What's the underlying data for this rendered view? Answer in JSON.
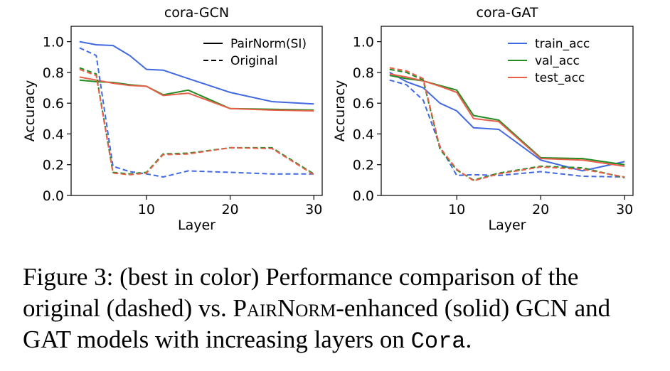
{
  "colors": {
    "train_acc": "#4169e1",
    "val_acc": "#228b22",
    "test_acc": "#e9604a"
  },
  "chart_data": [
    {
      "type": "line",
      "title": "cora-GCN",
      "xlabel": "Layer",
      "ylabel": "Accuracy",
      "xlim": [
        1,
        31
      ],
      "ylim": [
        0,
        1.1
      ],
      "xticks": [
        10,
        20,
        30
      ],
      "yticks": [
        0.0,
        0.2,
        0.4,
        0.6,
        0.8,
        1.0
      ],
      "ytick_labels": [
        "0.0",
        "0.2",
        "0.4",
        "0.6",
        "0.8",
        "1.0"
      ],
      "grid": false,
      "legend_position": "top-right",
      "legend": [
        {
          "label": "PairNorm(SI)",
          "style": "solid"
        },
        {
          "label": "Original",
          "style": "dashed"
        }
      ],
      "x": [
        2,
        4,
        6,
        8,
        10,
        12,
        15,
        20,
        25,
        30
      ],
      "series": [
        {
          "metric": "train_acc",
          "style": "solid",
          "values": [
            1.0,
            0.98,
            0.975,
            0.91,
            0.82,
            0.815,
            0.76,
            0.67,
            0.61,
            0.595
          ]
        },
        {
          "metric": "val_acc",
          "style": "solid",
          "values": [
            0.75,
            0.74,
            0.735,
            0.72,
            0.71,
            0.655,
            0.685,
            0.565,
            0.56,
            0.555
          ]
        },
        {
          "metric": "test_acc",
          "style": "solid",
          "values": [
            0.77,
            0.75,
            0.73,
            0.715,
            0.71,
            0.65,
            0.665,
            0.565,
            0.555,
            0.55
          ]
        },
        {
          "metric": "train_acc",
          "style": "dashed",
          "values": [
            0.96,
            0.91,
            0.19,
            0.155,
            0.14,
            0.12,
            0.16,
            0.15,
            0.14,
            0.14
          ]
        },
        {
          "metric": "val_acc",
          "style": "dashed",
          "values": [
            0.83,
            0.79,
            0.15,
            0.14,
            0.15,
            0.27,
            0.275,
            0.31,
            0.31,
            0.14
          ]
        },
        {
          "metric": "test_acc",
          "style": "dashed",
          "values": [
            0.82,
            0.78,
            0.145,
            0.135,
            0.145,
            0.265,
            0.27,
            0.31,
            0.305,
            0.135
          ]
        }
      ]
    },
    {
      "type": "line",
      "title": "cora-GAT",
      "xlabel": "Layer",
      "ylabel": "Accuracy",
      "xlim": [
        1,
        31
      ],
      "ylim": [
        0,
        1.1
      ],
      "xticks": [
        10,
        20,
        30
      ],
      "yticks": [
        0.0,
        0.2,
        0.4,
        0.6,
        0.8,
        1.0
      ],
      "ytick_labels": [
        "0.0",
        "0.2",
        "0.4",
        "0.6",
        "0.8",
        "1.0"
      ],
      "grid": false,
      "legend_position": "top-right",
      "legend": [
        {
          "label": "train_acc",
          "metric": "train_acc"
        },
        {
          "label": "val_acc",
          "metric": "val_acc"
        },
        {
          "label": "test_acc",
          "metric": "test_acc"
        }
      ],
      "x": [
        2,
        4,
        6,
        8,
        10,
        12,
        15,
        20,
        25,
        30
      ],
      "series": [
        {
          "metric": "train_acc",
          "style": "solid",
          "values": [
            0.8,
            0.74,
            0.7,
            0.6,
            0.55,
            0.44,
            0.43,
            0.23,
            0.16,
            0.22
          ]
        },
        {
          "metric": "val_acc",
          "style": "solid",
          "values": [
            0.78,
            0.76,
            0.745,
            0.715,
            0.685,
            0.52,
            0.49,
            0.245,
            0.24,
            0.2
          ]
        },
        {
          "metric": "test_acc",
          "style": "solid",
          "values": [
            0.79,
            0.77,
            0.745,
            0.71,
            0.67,
            0.5,
            0.48,
            0.24,
            0.23,
            0.19
          ]
        },
        {
          "metric": "train_acc",
          "style": "dashed",
          "values": [
            0.75,
            0.72,
            0.62,
            0.32,
            0.13,
            0.135,
            0.13,
            0.155,
            0.125,
            0.12
          ]
        },
        {
          "metric": "val_acc",
          "style": "dashed",
          "values": [
            0.82,
            0.8,
            0.75,
            0.3,
            0.165,
            0.1,
            0.145,
            0.19,
            0.18,
            0.115
          ]
        },
        {
          "metric": "test_acc",
          "style": "dashed",
          "values": [
            0.83,
            0.81,
            0.76,
            0.31,
            0.17,
            0.095,
            0.14,
            0.185,
            0.17,
            0.12
          ]
        }
      ]
    }
  ],
  "caption": {
    "label": "Figure 3:",
    "text_1": " (best in color) Performance comparison of the original (dashed) vs. ",
    "pairnorm": "PairNorm",
    "text_2": "-enhanced (solid) GCN and GAT models with increasing layers on ",
    "dataset": "Cora",
    "text_3": "."
  }
}
